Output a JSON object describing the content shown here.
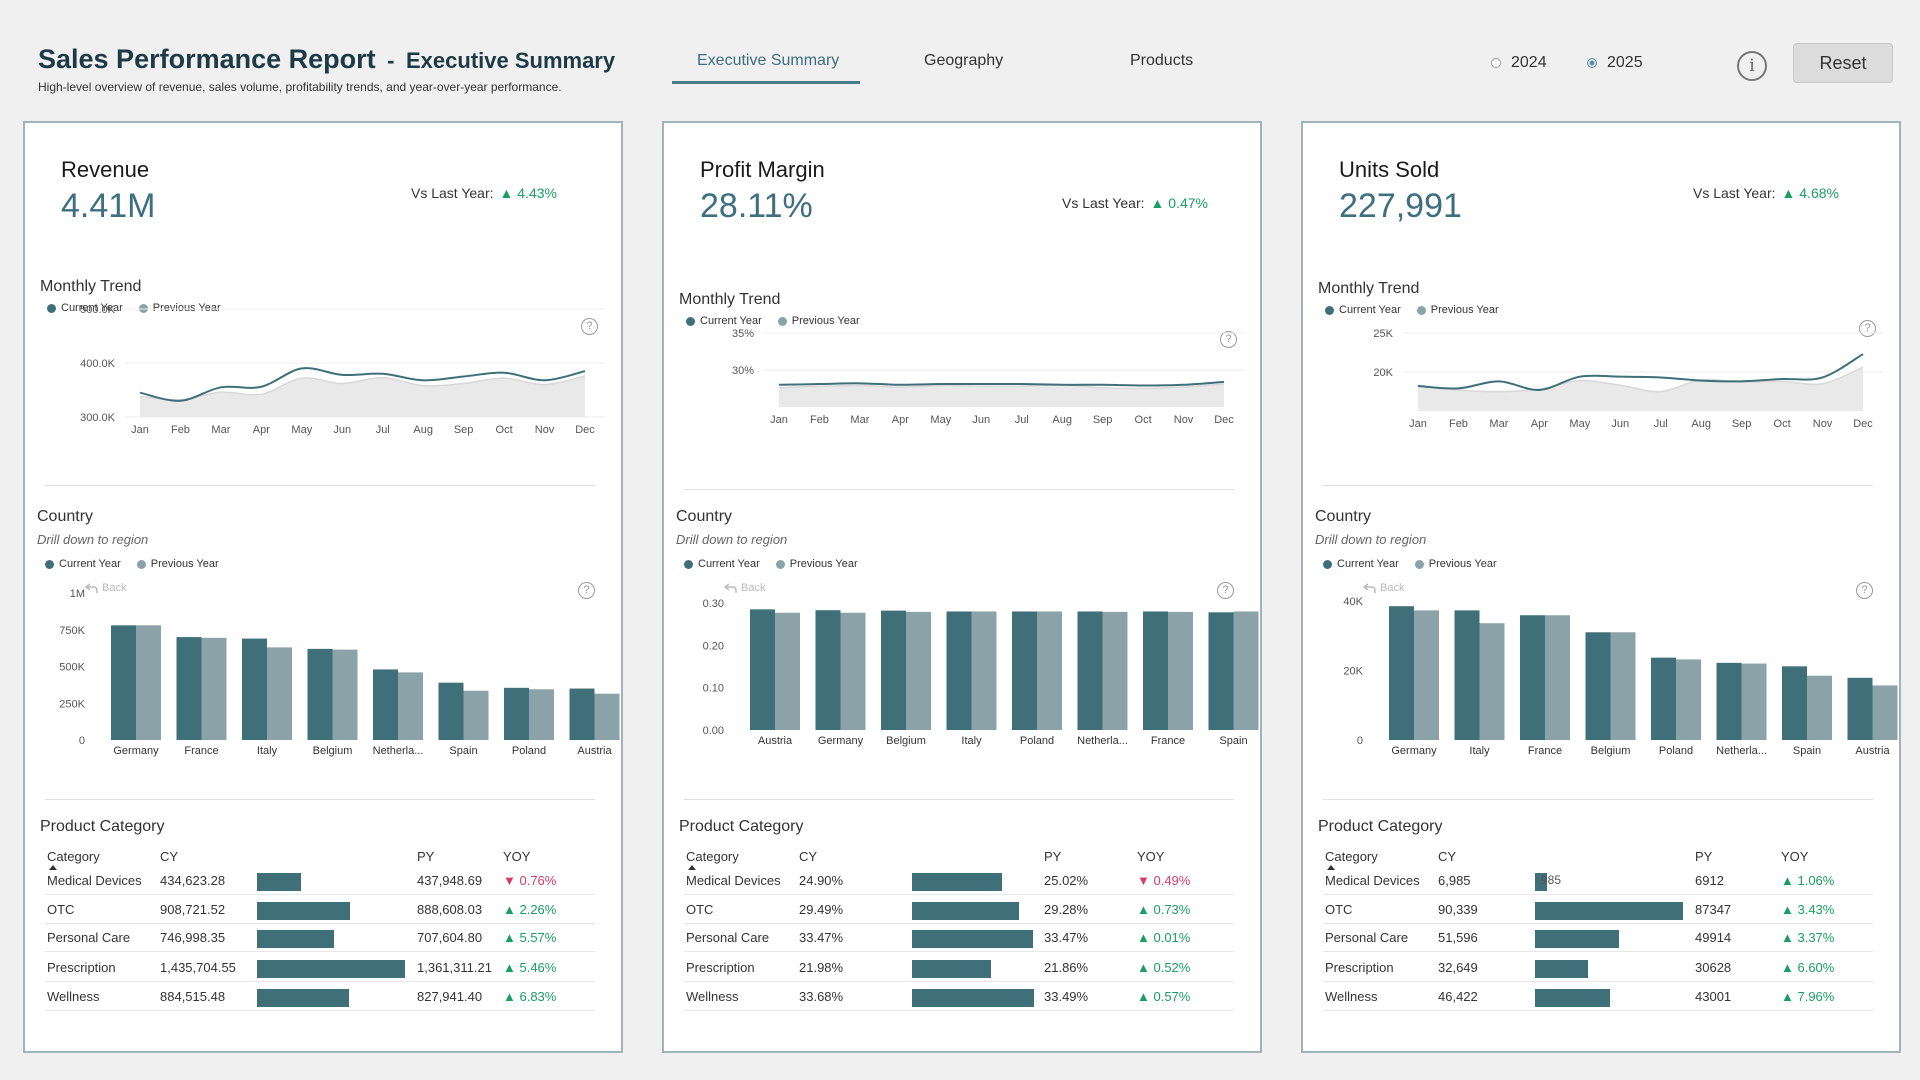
{
  "header": {
    "title": "Sales Performance Report",
    "separator": "-",
    "subtitle_page": "Executive Summary",
    "description": "High-level overview of revenue, sales volume, profitability trends, and year-over-year performance."
  },
  "nav": {
    "tabs": [
      {
        "label": "Executive Summary",
        "active": true
      },
      {
        "label": "Geography",
        "active": false
      },
      {
        "label": "Products",
        "active": false
      }
    ]
  },
  "year_filter": {
    "options": [
      {
        "label": "2024",
        "selected": false
      },
      {
        "label": "2025",
        "selected": true
      }
    ]
  },
  "controls": {
    "info_icon": "i",
    "reset_label": "Reset"
  },
  "common": {
    "vs_label": "Vs Last Year:",
    "monthly_title": "Monthly Trend",
    "country_title": "Country",
    "country_sub": "Drill down to region",
    "legend_cy": "Current Year",
    "legend_py": "Previous Year",
    "back_label": "Back",
    "product_title": "Product Category",
    "col_category": "Category",
    "col_cy": "CY",
    "col_py": "PY",
    "col_yoy": "YOY",
    "help_icon": "?",
    "colors": {
      "current": "#3f6f79",
      "previous": "#8ba3a8",
      "py_area": "#e9e9e9",
      "positive": "#1a9e62",
      "negative": "#d63c6a"
    }
  },
  "panels": [
    {
      "kpi_title": "Revenue",
      "kpi_value": "4.41M",
      "vs_value": "▲ 4.43%",
      "chart_data": [
        {
          "type": "area",
          "title": "Monthly Trend",
          "x": [
            "Jan",
            "Feb",
            "Mar",
            "Apr",
            "May",
            "Jun",
            "Jul",
            "Aug",
            "Sep",
            "Oct",
            "Nov",
            "Dec"
          ],
          "ylim": [
            300000,
            500000
          ],
          "yticks": [
            "300.0K",
            "400.0K",
            "500.0K"
          ],
          "series": [
            {
              "name": "Current Year",
              "values": [
                345000,
                330000,
                355000,
                356000,
                390000,
                378000,
                380000,
                368000,
                375000,
                382000,
                368000,
                385000
              ]
            },
            {
              "name": "Previous Year",
              "values": [
                338000,
                332000,
                346000,
                342000,
                372000,
                362000,
                373000,
                358000,
                362000,
                372000,
                360000,
                376000
              ]
            }
          ]
        },
        {
          "type": "bar",
          "title": "Country",
          "categories": [
            "Germany",
            "France",
            "Italy",
            "Belgium",
            "Netherla...",
            "Spain",
            "Poland",
            "Austria"
          ],
          "ylim": [
            0,
            1000000
          ],
          "yticks": [
            "0",
            "250K",
            "500K",
            "750K",
            "1M"
          ],
          "series": [
            {
              "name": "Current Year",
              "values": [
                780000,
                700000,
                690000,
                620000,
                480000,
                390000,
                355000,
                350000
              ]
            },
            {
              "name": "Previous Year",
              "values": [
                780000,
                695000,
                630000,
                615000,
                460000,
                335000,
                345000,
                315000
              ]
            }
          ]
        },
        {
          "type": "table",
          "title": "Product Category",
          "columns": [
            "Category",
            "CY",
            "PY",
            "YOY"
          ],
          "rows": [
            {
              "category": "Medical Devices",
              "cy": "434,623.28",
              "bar": 0.3,
              "bar_label": "",
              "py": "437,948.69",
              "yoy": "▼ 0.76%",
              "dir": "down"
            },
            {
              "category": "OTC",
              "cy": "908,721.52",
              "bar": 0.63,
              "bar_label": "",
              "py": "888,608.03",
              "yoy": "▲ 2.26%",
              "dir": "up"
            },
            {
              "category": "Personal Care",
              "cy": "746,998.35",
              "bar": 0.52,
              "bar_label": "",
              "py": "707,604.80",
              "yoy": "▲ 5.57%",
              "dir": "up"
            },
            {
              "category": "Prescription",
              "cy": "1,435,704.55",
              "bar": 1.0,
              "bar_label": "",
              "py": "1,361,311.21",
              "yoy": "▲ 5.46%",
              "dir": "up"
            },
            {
              "category": "Wellness",
              "cy": "884,515.48",
              "bar": 0.62,
              "bar_label": "",
              "py": "827,941.40",
              "yoy": "▲ 6.83%",
              "dir": "up"
            }
          ]
        }
      ]
    },
    {
      "kpi_title": "Profit Margin",
      "kpi_value": "28.11%",
      "vs_value": "▲ 0.47%",
      "chart_data": [
        {
          "type": "area",
          "title": "Monthly Trend",
          "x": [
            "Jan",
            "Feb",
            "Mar",
            "Apr",
            "May",
            "Jun",
            "Jul",
            "Aug",
            "Sep",
            "Oct",
            "Nov",
            "Dec"
          ],
          "ylim": [
            25,
            35
          ],
          "yticks": [
            "30%",
            "35%"
          ],
          "series": [
            {
              "name": "Current Year",
              "values": [
                28.0,
                28.1,
                28.2,
                28.0,
                28.1,
                28.1,
                28.1,
                28.0,
                28.0,
                27.9,
                28.0,
                28.4
              ]
            },
            {
              "name": "Previous Year",
              "values": [
                27.6,
                27.8,
                27.9,
                27.7,
                27.9,
                27.8,
                27.8,
                28.0,
                27.6,
                27.5,
                27.7,
                28.1
              ]
            }
          ]
        },
        {
          "type": "bar",
          "title": "Country",
          "categories": [
            "Austria",
            "Germany",
            "Belgium",
            "Italy",
            "Poland",
            "Netherla...",
            "France",
            "Spain"
          ],
          "ylim": [
            0,
            0.3
          ],
          "yticks": [
            "0.00",
            "0.10",
            "0.20",
            "0.30"
          ],
          "series": [
            {
              "name": "Current Year",
              "values": [
                0.285,
                0.283,
                0.282,
                0.28,
                0.28,
                0.28,
                0.28,
                0.278
              ]
            },
            {
              "name": "Previous Year",
              "values": [
                0.277,
                0.277,
                0.279,
                0.28,
                0.28,
                0.279,
                0.279,
                0.28
              ]
            }
          ]
        },
        {
          "type": "table",
          "title": "Product Category",
          "columns": [
            "Category",
            "CY",
            "PY",
            "YOY"
          ],
          "rows": [
            {
              "category": "Medical Devices",
              "cy": "24.90%",
              "bar": 0.74,
              "bar_label": "",
              "py": "25.02%",
              "yoy": "▼ 0.49%",
              "dir": "down"
            },
            {
              "category": "OTC",
              "cy": "29.49%",
              "bar": 0.88,
              "bar_label": "",
              "py": "29.28%",
              "yoy": "▲ 0.73%",
              "dir": "up"
            },
            {
              "category": "Personal Care",
              "cy": "33.47%",
              "bar": 0.99,
              "bar_label": "",
              "py": "33.47%",
              "yoy": "▲ 0.01%",
              "dir": "up"
            },
            {
              "category": "Prescription",
              "cy": "21.98%",
              "bar": 0.65,
              "bar_label": "",
              "py": "21.86%",
              "yoy": "▲ 0.52%",
              "dir": "up"
            },
            {
              "category": "Wellness",
              "cy": "33.68%",
              "bar": 1.0,
              "bar_label": "",
              "py": "33.49%",
              "yoy": "▲ 0.57%",
              "dir": "up"
            }
          ]
        }
      ]
    },
    {
      "kpi_title": "Units Sold",
      "kpi_value": "227,991",
      "vs_value": "▲ 4.68%",
      "chart_data": [
        {
          "type": "area",
          "title": "Monthly Trend",
          "x": [
            "Jan",
            "Feb",
            "Mar",
            "Apr",
            "May",
            "Jun",
            "Jul",
            "Aug",
            "Sep",
            "Oct",
            "Nov",
            "Dec"
          ],
          "ylim": [
            15000,
            25000
          ],
          "yticks": [
            "20K",
            "25K"
          ],
          "series": [
            {
              "name": "Current Year",
              "values": [
                18200,
                17900,
                18800,
                17700,
                19400,
                19400,
                19300,
                18900,
                18800,
                19100,
                19300,
                22300
              ]
            },
            {
              "name": "Previous Year",
              "values": [
                18300,
                17700,
                17500,
                17800,
                18900,
                18300,
                17500,
                19000,
                18700,
                18800,
                18500,
                20600
              ]
            }
          ]
        },
        {
          "type": "bar",
          "title": "Country",
          "categories": [
            "Germany",
            "Italy",
            "France",
            "Belgium",
            "Poland",
            "Netherla...",
            "Spain",
            "Austria"
          ],
          "ylim": [
            0,
            40000
          ],
          "yticks": [
            "0",
            "20K",
            "40K"
          ],
          "series": [
            {
              "name": "Current Year",
              "values": [
                38500,
                37300,
                35900,
                31000,
                23700,
                22200,
                21200,
                17900
              ]
            },
            {
              "name": "Previous Year",
              "values": [
                37300,
                33600,
                35900,
                31000,
                23200,
                22000,
                18500,
                15700
              ]
            }
          ]
        },
        {
          "type": "table",
          "title": "Product Category",
          "columns": [
            "Category",
            "CY",
            "PY",
            "YOY"
          ],
          "rows": [
            {
              "category": "Medical Devices",
              "cy": "6,985",
              "bar": 0.08,
              "bar_label": "985",
              "py": "6912",
              "yoy": "▲ 1.06%",
              "dir": "up"
            },
            {
              "category": "OTC",
              "cy": "90,339",
              "bar": 1.0,
              "bar_label": "",
              "py": "87347",
              "yoy": "▲ 3.43%",
              "dir": "up"
            },
            {
              "category": "Personal Care",
              "cy": "51,596",
              "bar": 0.57,
              "bar_label": "",
              "py": "49914",
              "yoy": "▲ 3.37%",
              "dir": "up"
            },
            {
              "category": "Prescription",
              "cy": "32,649",
              "bar": 0.36,
              "bar_label": "",
              "py": "30628",
              "yoy": "▲ 6.60%",
              "dir": "up"
            },
            {
              "category": "Wellness",
              "cy": "46,422",
              "bar": 0.51,
              "bar_label": "",
              "py": "43001",
              "yoy": "▲ 7.96%",
              "dir": "up"
            }
          ]
        }
      ]
    }
  ]
}
